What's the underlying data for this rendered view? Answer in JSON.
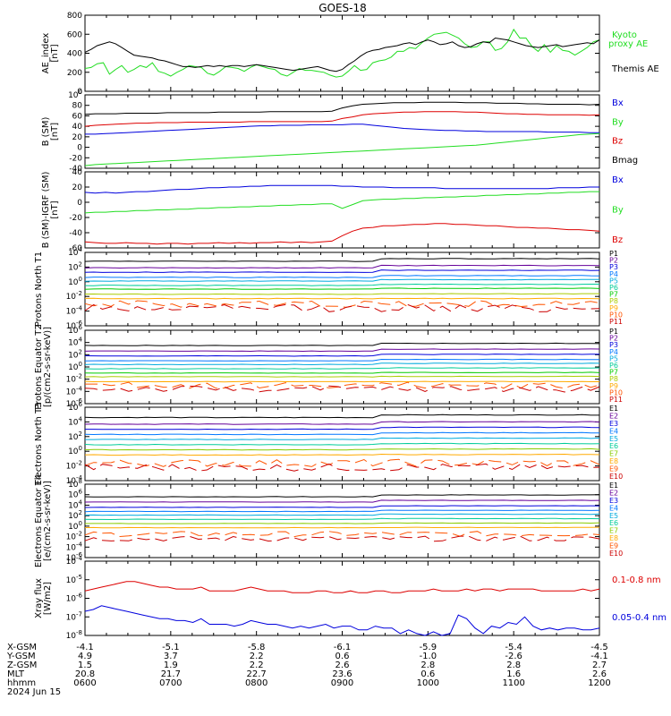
{
  "title": "GOES-18",
  "colors": {
    "black": "#000000",
    "blue": "#0000dd",
    "green": "#22dd22",
    "red": "#dd0000"
  },
  "chart_data": [
    {
      "type": "line",
      "id": "ae",
      "ylabel": "AE_index [nT]",
      "ylim": [
        0,
        800
      ],
      "yticks": [
        "0",
        "200",
        "400",
        "600",
        "800"
      ],
      "legend": [
        "Kyoto proxy AE",
        "Themis AE"
      ],
      "legend_colors": [
        "green",
        "black"
      ],
      "series": [
        {
          "name": "Kyoto proxy AE",
          "color": "green",
          "values": [
            240,
            250,
            290,
            300,
            180,
            230,
            270,
            200,
            230,
            270,
            250,
            300,
            210,
            190,
            160,
            200,
            230,
            270,
            260,
            250,
            190,
            170,
            210,
            260,
            250,
            240,
            210,
            250,
            280,
            260,
            240,
            230,
            180,
            160,
            200,
            240,
            220,
            220,
            210,
            200,
            170,
            150,
            160,
            210,
            270,
            220,
            230,
            300,
            320,
            330,
            360,
            420,
            420,
            460,
            450,
            510,
            560,
            600,
            610,
            620,
            590,
            560,
            500,
            460,
            470,
            520,
            520,
            430,
            450,
            520,
            650,
            560,
            560,
            470,
            420,
            490,
            410,
            480,
            430,
            420,
            380,
            420,
            460,
            520,
            540
          ]
        },
        {
          "name": "Themis AE",
          "color": "black",
          "values": [
            410,
            440,
            480,
            500,
            520,
            500,
            460,
            420,
            380,
            370,
            360,
            350,
            330,
            320,
            300,
            280,
            260,
            260,
            250,
            260,
            270,
            260,
            270,
            260,
            270,
            270,
            260,
            270,
            280,
            270,
            260,
            250,
            240,
            230,
            220,
            230,
            240,
            250,
            260,
            240,
            220,
            210,
            230,
            280,
            320,
            370,
            410,
            430,
            440,
            460,
            470,
            480,
            500,
            510,
            490,
            520,
            540,
            520,
            490,
            500,
            520,
            480,
            460,
            470,
            500,
            520,
            510,
            560,
            550,
            540,
            520,
            500,
            480,
            470,
            460,
            470,
            480,
            490,
            470,
            480,
            490,
            500,
            510,
            500,
            540
          ]
        }
      ]
    },
    {
      "type": "line",
      "id": "bsm",
      "ylabel": "B (SM) [nT]",
      "ylim": [
        -40,
        100
      ],
      "yticks": [
        "-40",
        "-20",
        "0",
        "20",
        "40",
        "60",
        "80",
        "100"
      ],
      "legend": [
        "Bx",
        "By",
        "Bz",
        "Bmag"
      ],
      "legend_colors": [
        "blue",
        "green",
        "red",
        "black"
      ],
      "series": [
        {
          "name": "Bx",
          "color": "blue",
          "values": [
            25,
            25,
            26,
            27,
            28,
            29,
            30,
            31,
            32,
            33,
            34,
            35,
            36,
            37,
            38,
            39,
            40,
            41,
            41,
            42,
            42,
            42,
            43,
            43,
            43,
            43,
            44,
            44,
            42,
            40,
            38,
            36,
            35,
            34,
            33,
            32,
            32,
            31,
            31,
            30,
            30,
            30,
            30,
            30,
            30,
            29,
            29,
            29,
            29,
            28,
            28
          ]
        },
        {
          "name": "By",
          "color": "green",
          "values": [
            -35,
            -33,
            -32,
            -31,
            -30,
            -29,
            -28,
            -27,
            -26,
            -25,
            -24,
            -23,
            -22,
            -21,
            -20,
            -19,
            -18,
            -17,
            -16,
            -15,
            -14,
            -13,
            -12,
            -11,
            -10,
            -9,
            -8,
            -7,
            -6,
            -5,
            -4,
            -3,
            -2,
            -1,
            0,
            1,
            2,
            3,
            4,
            6,
            8,
            10,
            12,
            14,
            16,
            18,
            20,
            22,
            24,
            25,
            26
          ]
        },
        {
          "name": "Bz",
          "color": "red",
          "values": [
            40,
            42,
            43,
            44,
            45,
            46,
            46,
            47,
            47,
            47,
            48,
            48,
            48,
            48,
            48,
            48,
            49,
            49,
            49,
            49,
            49,
            49,
            49,
            49,
            50,
            55,
            58,
            62,
            64,
            65,
            66,
            67,
            67,
            68,
            68,
            68,
            68,
            67,
            67,
            66,
            65,
            64,
            64,
            63,
            63,
            62,
            62,
            62,
            62,
            61,
            62
          ]
        },
        {
          "name": "Bmag",
          "color": "black",
          "values": [
            63,
            64,
            64,
            64,
            65,
            65,
            65,
            65,
            66,
            66,
            66,
            66,
            66,
            67,
            67,
            67,
            67,
            67,
            68,
            68,
            68,
            68,
            68,
            68,
            69,
            75,
            79,
            82,
            83,
            84,
            85,
            85,
            85,
            86,
            86,
            86,
            86,
            85,
            85,
            85,
            84,
            84,
            84,
            83,
            83,
            82,
            82,
            82,
            82,
            81,
            82
          ]
        }
      ]
    },
    {
      "type": "line",
      "id": "bsm-igrf",
      "ylabel": "B (SM)-IGRF (SM) [nT]",
      "ylim": [
        -60,
        40
      ],
      "yticks": [
        "-60",
        "-40",
        "-20",
        "0",
        "20",
        "40"
      ],
      "legend": [
        "Bx",
        "By",
        "Bz"
      ],
      "legend_colors": [
        "blue",
        "green",
        "red"
      ],
      "series": [
        {
          "name": "Bx",
          "color": "blue",
          "values": [
            13,
            12,
            13,
            12,
            13,
            14,
            14,
            15,
            16,
            17,
            17,
            18,
            19,
            19,
            20,
            20,
            21,
            21,
            22,
            22,
            22,
            22,
            22,
            22,
            22,
            21,
            21,
            20,
            20,
            20,
            19,
            19,
            19,
            19,
            19,
            18,
            18,
            18,
            18,
            18,
            18,
            18,
            18,
            18,
            18,
            18,
            19,
            19,
            19,
            20,
            20
          ]
        },
        {
          "name": "By",
          "color": "green",
          "values": [
            -14,
            -13,
            -13,
            -12,
            -12,
            -11,
            -11,
            -10,
            -10,
            -9,
            -9,
            -8,
            -8,
            -7,
            -7,
            -6,
            -6,
            -5,
            -5,
            -4,
            -4,
            -3,
            -3,
            -2,
            -2,
            -8,
            -3,
            2,
            3,
            4,
            4,
            5,
            5,
            6,
            6,
            7,
            7,
            8,
            8,
            9,
            9,
            10,
            10,
            11,
            11,
            12,
            12,
            13,
            13,
            14,
            14
          ]
        },
        {
          "name": "Bz",
          "color": "red",
          "values": [
            -52,
            -53,
            -54,
            -54,
            -53,
            -54,
            -54,
            -55,
            -54,
            -54,
            -55,
            -54,
            -54,
            -53,
            -54,
            -53,
            -54,
            -53,
            -53,
            -52,
            -53,
            -52,
            -53,
            -52,
            -51,
            -44,
            -38,
            -34,
            -33,
            -31,
            -31,
            -30,
            -29,
            -29,
            -28,
            -28,
            -29,
            -29,
            -30,
            -31,
            -31,
            -32,
            -33,
            -33,
            -34,
            -34,
            -35,
            -36,
            -36,
            -37,
            -38
          ]
        }
      ]
    },
    {
      "type": "line",
      "id": "protons-t1",
      "ylabel": "Protons North T1",
      "yscale": "log",
      "ylim": [
        -6,
        4
      ],
      "yticks": [
        "10-6",
        "10-4",
        "10-2",
        "100",
        "102",
        "104"
      ],
      "legend": [
        "P1",
        "P2",
        "P3",
        "P4",
        "P5",
        "P6",
        "P7",
        "P8",
        "P9",
        "P10",
        "P11"
      ],
      "legend_colors": [
        "#000000",
        "#660099",
        "#0000dd",
        "#0077ff",
        "#00aadd",
        "#00cc99",
        "#00cc00",
        "#aacc00",
        "#ffaa00",
        "#ff5500",
        "#cc0000"
      ],
      "levels": [
        2.8,
        1.9,
        1.3,
        0.6,
        0.1,
        -0.5,
        -1.0,
        -1.7,
        -2.3,
        -3.0,
        -3.6
      ],
      "noisy_from": 9
    },
    {
      "type": "line",
      "id": "protons-t2",
      "ylabel": "Protons Equator T2 [p/(cm2-s-sr-keV)]",
      "yscale": "log",
      "ylim": [
        -6,
        6
      ],
      "yticks": [
        "10-6",
        "10-4",
        "10-2",
        "100",
        "102",
        "104",
        "106"
      ],
      "legend": [
        "P1",
        "P2",
        "P3",
        "P4",
        "P5",
        "P6",
        "P7",
        "P8",
        "P9",
        "P10",
        "P11"
      ],
      "legend_colors": [
        "#000000",
        "#660099",
        "#0000dd",
        "#0077ff",
        "#00aadd",
        "#00cc99",
        "#00cc00",
        "#aacc00",
        "#ffaa00",
        "#ff5500",
        "#cc0000"
      ],
      "levels": [
        3.5,
        2.6,
        1.8,
        1.0,
        0.4,
        -0.3,
        -1.0,
        -1.6,
        -2.4,
        -3.0,
        -3.6
      ],
      "noisy_from": 9
    },
    {
      "type": "line",
      "id": "electrons-t3",
      "ylabel": "Electrons North T3",
      "yscale": "log",
      "ylim": [
        -4,
        6
      ],
      "yticks": [
        "10-4",
        "10-2",
        "100",
        "102",
        "104",
        "106"
      ],
      "legend": [
        "E1",
        "E2",
        "E3",
        "E4",
        "E5",
        "E6",
        "E7",
        "E8",
        "E9",
        "E10"
      ],
      "legend_colors": [
        "#000000",
        "#660099",
        "#0000dd",
        "#0077ff",
        "#00aadd",
        "#00cc99",
        "#88cc00",
        "#ffaa00",
        "#ff5500",
        "#cc0000"
      ],
      "levels": [
        4.6,
        3.7,
        3.0,
        2.3,
        1.6,
        0.9,
        0.2,
        -0.5,
        -1.6,
        -2.2
      ],
      "noisy_from": 8
    },
    {
      "type": "line",
      "id": "electrons-t4",
      "ylabel": "Electrons Equator T4 [e/(cm2-s-sr-keV)]",
      "yscale": "log",
      "ylim": [
        -6,
        8
      ],
      "yticks": [
        "10-6",
        "10-4",
        "10-2",
        "100",
        "102",
        "104",
        "106",
        "108"
      ],
      "legend": [
        "E1",
        "E2",
        "E3",
        "E4",
        "E5",
        "E6",
        "E7",
        "E8",
        "E9",
        "E10"
      ],
      "legend_colors": [
        "#000000",
        "#660099",
        "#0000dd",
        "#0077ff",
        "#00aadd",
        "#00cc99",
        "#88cc00",
        "#ffaa00",
        "#ff5500",
        "#cc0000"
      ],
      "levels": [
        5.6,
        4.6,
        3.6,
        2.8,
        2.1,
        1.3,
        0.5,
        -0.3,
        -1.5,
        -2.4
      ],
      "noisy_from": 8
    },
    {
      "type": "line",
      "id": "xray",
      "ylabel": "Xray flux [W/m2]",
      "yscale": "log",
      "ylim": [
        -8,
        -4
      ],
      "yticks": [
        "10-8",
        "10-7",
        "10-6",
        "10-5",
        "10-4"
      ],
      "legend": [
        "0.1-0.8 nm",
        "0.05-0.4 nm"
      ],
      "legend_colors": [
        "red",
        "blue"
      ],
      "series": [
        {
          "name": "0.1-0.8 nm",
          "color": "red",
          "values": [
            -5.6,
            -5.5,
            -5.4,
            -5.3,
            -5.2,
            -5.1,
            -5.1,
            -5.2,
            -5.3,
            -5.4,
            -5.4,
            -5.5,
            -5.5,
            -5.5,
            -5.4,
            -5.6,
            -5.6,
            -5.6,
            -5.6,
            -5.5,
            -5.4,
            -5.5,
            -5.6,
            -5.6,
            -5.6,
            -5.7,
            -5.7,
            -5.7,
            -5.6,
            -5.6,
            -5.7,
            -5.7,
            -5.6,
            -5.7,
            -5.7,
            -5.6,
            -5.6,
            -5.7,
            -5.7,
            -5.6,
            -5.6,
            -5.6,
            -5.5,
            -5.6,
            -5.6,
            -5.6,
            -5.5,
            -5.6,
            -5.5,
            -5.5,
            -5.6,
            -5.5,
            -5.5,
            -5.5,
            -5.5,
            -5.6,
            -5.6,
            -5.6,
            -5.6,
            -5.6,
            -5.5,
            -5.6,
            -5.5
          ]
        },
        {
          "name": "0.05-0.4 nm",
          "color": "blue",
          "values": [
            -6.7,
            -6.6,
            -6.4,
            -6.5,
            -6.6,
            -6.7,
            -6.8,
            -6.9,
            -7.0,
            -7.1,
            -7.1,
            -7.2,
            -7.2,
            -7.3,
            -7.1,
            -7.4,
            -7.4,
            -7.4,
            -7.5,
            -7.4,
            -7.2,
            -7.3,
            -7.4,
            -7.4,
            -7.5,
            -7.6,
            -7.5,
            -7.6,
            -7.5,
            -7.4,
            -7.6,
            -7.5,
            -7.5,
            -7.7,
            -7.7,
            -7.5,
            -7.6,
            -7.6,
            -7.9,
            -7.7,
            -7.9,
            -8.0,
            -7.8,
            -8.0,
            -7.9,
            -6.9,
            -7.1,
            -7.6,
            -7.9,
            -7.5,
            -7.6,
            -7.3,
            -7.4,
            -7.0,
            -7.5,
            -7.7,
            -7.6,
            -7.7,
            -7.6,
            -7.6,
            -7.7,
            -7.7,
            -7.6
          ]
        }
      ]
    }
  ],
  "footer": {
    "row_labels": [
      "X-GSM",
      "Y-GSM",
      "Z-GSM",
      "MLT",
      "hhmm",
      "2024 Jun 15"
    ],
    "columns": [
      [
        "-4.1",
        "4.9",
        "1.5",
        "20.8",
        "0600"
      ],
      [
        "-5.1",
        "3.7",
        "1.9",
        "21.7",
        "0700"
      ],
      [
        "-5.8",
        "2.2",
        "2.2",
        "22.7",
        "0800"
      ],
      [
        "-6.1",
        "0.6",
        "2.6",
        "23.6",
        "0900"
      ],
      [
        "-5.9",
        "-1.0",
        "2.8",
        "0.6",
        "1000"
      ],
      [
        "-5.4",
        "-2.6",
        "2.8",
        "1.6",
        "1100"
      ],
      [
        "-4.5",
        "-4.1",
        "2.7",
        "2.6",
        "1200"
      ]
    ]
  }
}
